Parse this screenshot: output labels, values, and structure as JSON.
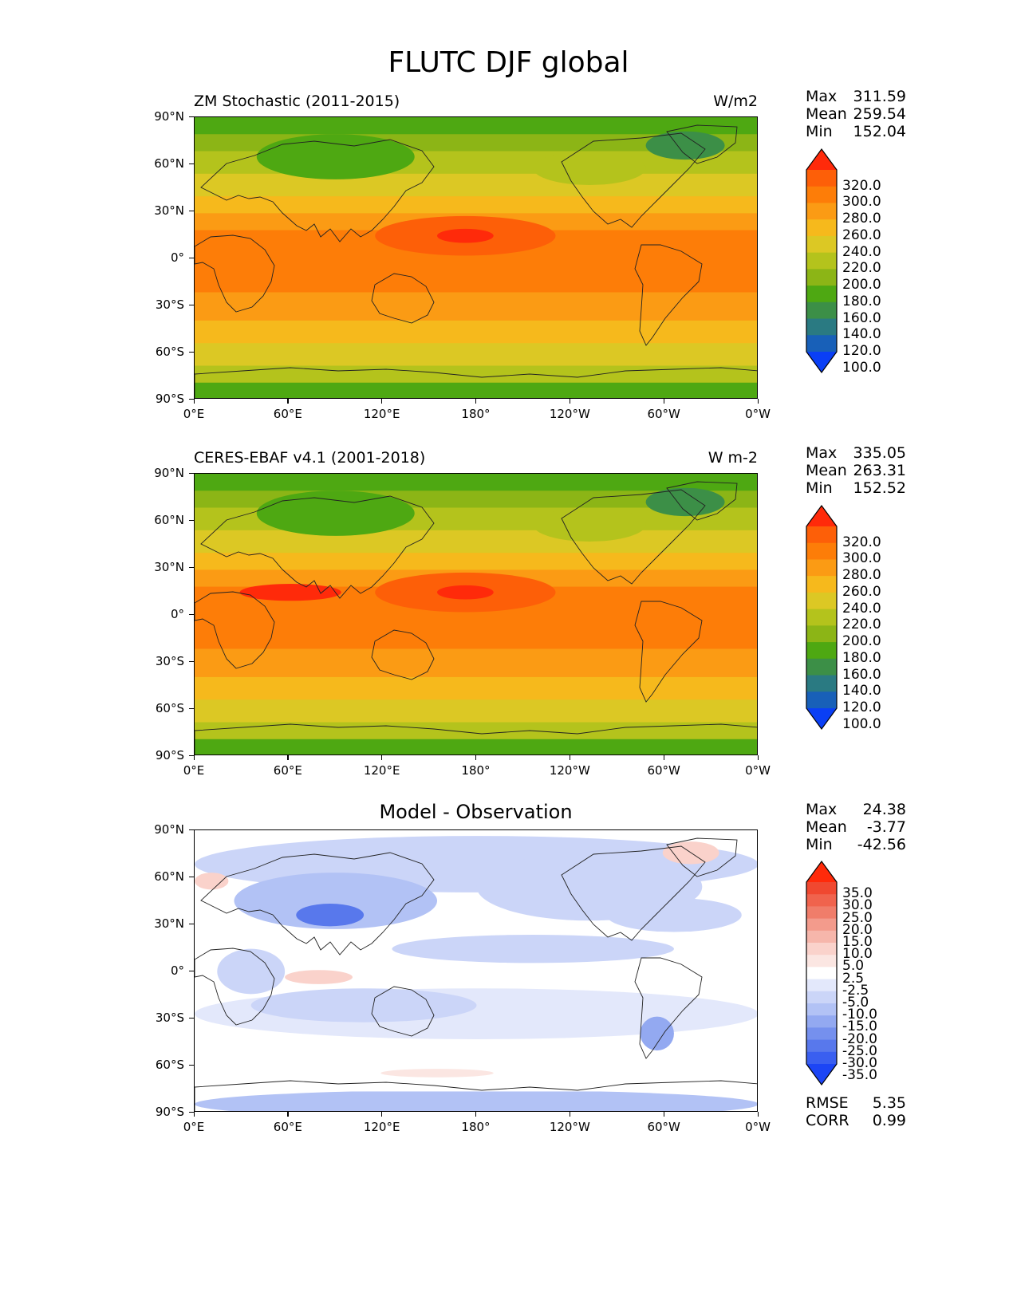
{
  "title": "FLUTC DJF global",
  "lat_ticks": [
    "90°N",
    "60°N",
    "30°N",
    "0°",
    "30°S",
    "60°S",
    "90°S"
  ],
  "lon_ticks": [
    "0°E",
    "60°E",
    "120°E",
    "180°",
    "120°W",
    "60°W",
    "0°W"
  ],
  "panels": [
    {
      "title_left": "ZM Stochastic (2011-2015)",
      "title_right": "W/m2",
      "title_center": "",
      "stats": [
        {
          "label": "Max",
          "value": "311.59"
        },
        {
          "label": "Mean",
          "value": "259.54"
        },
        {
          "label": "Min",
          "value": "152.04"
        }
      ],
      "colorbar_labels": [
        "320.0",
        "300.0",
        "280.0",
        "260.0",
        "240.0",
        "220.0",
        "200.0",
        "180.0",
        "160.0",
        "140.0",
        "120.0",
        "100.0"
      ],
      "footer": []
    },
    {
      "title_left": "CERES-EBAF v4.1 (2001-2018)",
      "title_right": "W m-2",
      "title_center": "",
      "stats": [
        {
          "label": "Max",
          "value": "335.05"
        },
        {
          "label": "Mean",
          "value": "263.31"
        },
        {
          "label": "Min",
          "value": "152.52"
        }
      ],
      "colorbar_labels": [
        "320.0",
        "300.0",
        "280.0",
        "260.0",
        "240.0",
        "220.0",
        "200.0",
        "180.0",
        "160.0",
        "140.0",
        "120.0",
        "100.0"
      ],
      "footer": []
    },
    {
      "title_left": "",
      "title_right": "",
      "title_center": "Model - Observation",
      "stats": [
        {
          "label": "Max",
          "value": "24.38"
        },
        {
          "label": "Mean",
          "value": "-3.77"
        },
        {
          "label": "Min",
          "value": "-42.56"
        }
      ],
      "colorbar_labels": [
        "35.0",
        "30.0",
        "25.0",
        "20.0",
        "15.0",
        "10.0",
        "5.0",
        "2.5",
        "-2.5",
        "-5.0",
        "-10.0",
        "-15.0",
        "-20.0",
        "-25.0",
        "-30.0",
        "-35.0"
      ],
      "footer": [
        {
          "label": "RMSE",
          "value": "5.35"
        },
        {
          "label": "CORR",
          "value": "0.99"
        }
      ]
    }
  ],
  "colors": {
    "field_scale": [
      "#ff2a0a",
      "#fd5f08",
      "#fd7d08",
      "#fb9b14",
      "#f6b91c",
      "#dcc824",
      "#b4c31c",
      "#8cb516",
      "#4ea812",
      "#3c8f47",
      "#2a7a82",
      "#1860b8",
      "#0a3ff5"
    ],
    "diff_scale": [
      "#ff2a0a",
      "#f04830",
      "#f0634d",
      "#f07d6a",
      "#f39b8c",
      "#f6b6ab",
      "#fad2cb",
      "#fbe6e2",
      "#ffffff",
      "#e3e8fb",
      "#cbd5f8",
      "#b2c2f5",
      "#93a9f1",
      "#7590ee",
      "#5878ec",
      "#3a5ff0",
      "#1c45f5"
    ]
  }
}
